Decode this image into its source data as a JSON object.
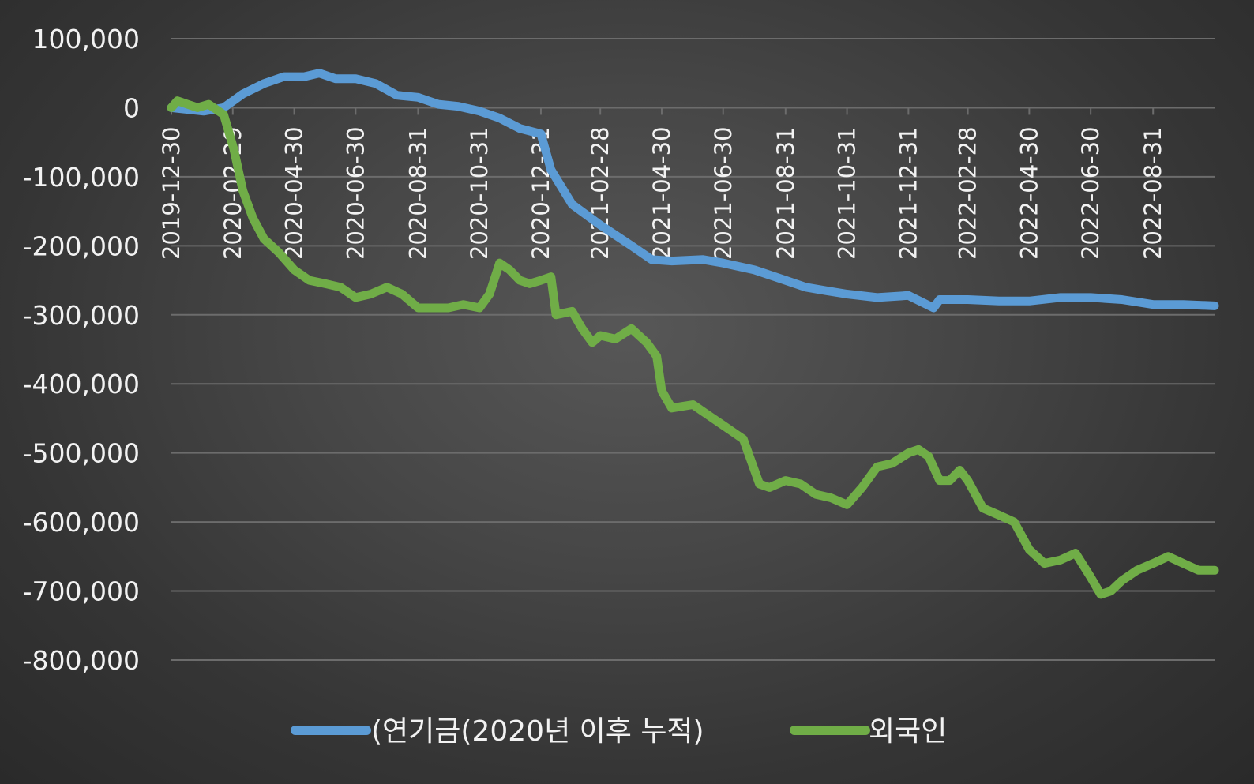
{
  "chart_data": {
    "type": "line",
    "title": "",
    "xlabel": "",
    "ylabel": "",
    "ylim": [
      -800000,
      100000
    ],
    "yticks": [
      "100,000",
      "0",
      "-100,000",
      "-200,000",
      "-300,000",
      "-400,000",
      "-500,000",
      "-600,000",
      "-700,000",
      "-800,000"
    ],
    "ytick_values": [
      100000,
      0,
      -100000,
      -200000,
      -300000,
      -400000,
      -500000,
      -600000,
      -700000,
      -800000
    ],
    "xlim": [
      "2019-12-30",
      "2022-10-31"
    ],
    "xticks": [
      "2019-12-30",
      "2020-02-29",
      "2020-04-30",
      "2020-06-30",
      "2020-08-31",
      "2020-10-31",
      "2020-12-31",
      "2021-02-28",
      "2021-04-30",
      "2021-06-30",
      "2021-08-31",
      "2021-10-31",
      "2021-12-31",
      "2022-02-28",
      "2022-04-30",
      "2022-06-30",
      "2022-08-31"
    ],
    "grid": true,
    "legend": "bottom",
    "colors": {
      "series1": "#5b9bd5",
      "series2": "#70ad47",
      "grid": "#6c6c6c",
      "text": "#f2f2f2"
    },
    "series": [
      {
        "name": "(연기금(2020년 이후 누적)",
        "x": [
          "2019-12-30",
          "2020-01-31",
          "2020-02-20",
          "2020-03-10",
          "2020-03-31",
          "2020-04-20",
          "2020-05-10",
          "2020-05-25",
          "2020-06-10",
          "2020-06-30",
          "2020-07-20",
          "2020-08-10",
          "2020-08-31",
          "2020-09-20",
          "2020-10-10",
          "2020-10-31",
          "2020-11-20",
          "2020-12-10",
          "2020-12-31",
          "2021-01-10",
          "2021-01-31",
          "2021-02-28",
          "2021-03-31",
          "2021-04-20",
          "2021-05-10",
          "2021-06-10",
          "2021-06-30",
          "2021-07-31",
          "2021-08-31",
          "2021-09-20",
          "2021-10-10",
          "2021-10-31",
          "2021-11-30",
          "2021-12-31",
          "2022-01-25",
          "2022-01-31",
          "2022-02-28",
          "2022-03-31",
          "2022-04-30",
          "2022-05-31",
          "2022-06-30",
          "2022-07-31",
          "2022-08-31",
          "2022-09-30",
          "2022-10-31"
        ],
        "y": [
          0,
          -5000,
          0,
          20000,
          35000,
          45000,
          45000,
          50000,
          42000,
          42000,
          35000,
          18000,
          15000,
          5000,
          2000,
          -5000,
          -15000,
          -30000,
          -38000,
          -90000,
          -140000,
          -170000,
          -200000,
          -220000,
          -222000,
          -220000,
          -225000,
          -235000,
          -250000,
          -260000,
          -265000,
          -270000,
          -275000,
          -272000,
          -290000,
          -278000,
          -278000,
          -280000,
          -280000,
          -275000,
          -275000,
          -278000,
          -285000,
          -285000,
          -287000
        ]
      },
      {
        "name": "외국인",
        "x": [
          "2019-12-30",
          "2020-01-05",
          "2020-01-15",
          "2020-01-25",
          "2020-02-05",
          "2020-02-20",
          "2020-03-01",
          "2020-03-10",
          "2020-03-20",
          "2020-03-31",
          "2020-04-15",
          "2020-04-30",
          "2020-05-15",
          "2020-05-31",
          "2020-06-15",
          "2020-06-30",
          "2020-07-15",
          "2020-07-31",
          "2020-08-15",
          "2020-08-31",
          "2020-09-15",
          "2020-09-30",
          "2020-10-15",
          "2020-10-31",
          "2020-11-10",
          "2020-11-20",
          "2020-11-30",
          "2020-12-10",
          "2020-12-20",
          "2020-12-31",
          "2021-01-10",
          "2021-01-15",
          "2021-01-31",
          "2021-02-10",
          "2021-02-20",
          "2021-02-28",
          "2021-03-15",
          "2021-03-31",
          "2021-04-15",
          "2021-04-25",
          "2021-04-30",
          "2021-05-10",
          "2021-05-31",
          "2021-06-15",
          "2021-06-30",
          "2021-07-10",
          "2021-07-20",
          "2021-08-05",
          "2021-08-15",
          "2021-08-31",
          "2021-09-15",
          "2021-09-30",
          "2021-10-15",
          "2021-10-31",
          "2021-11-15",
          "2021-11-30",
          "2021-12-15",
          "2021-12-31",
          "2022-01-10",
          "2022-01-20",
          "2022-01-31",
          "2022-02-10",
          "2022-02-20",
          "2022-02-28",
          "2022-03-15",
          "2022-03-31",
          "2022-04-15",
          "2022-04-30",
          "2022-05-15",
          "2022-05-31",
          "2022-06-15",
          "2022-06-30",
          "2022-07-10",
          "2022-07-20",
          "2022-07-31",
          "2022-08-15",
          "2022-08-31",
          "2022-09-15",
          "2022-09-30",
          "2022-10-15",
          "2022-10-31"
        ],
        "y": [
          0,
          10000,
          5000,
          0,
          5000,
          -10000,
          -60000,
          -120000,
          -160000,
          -190000,
          -210000,
          -235000,
          -250000,
          -255000,
          -260000,
          -275000,
          -270000,
          -260000,
          -270000,
          -290000,
          -290000,
          -290000,
          -285000,
          -290000,
          -270000,
          -225000,
          -235000,
          -250000,
          -255000,
          -250000,
          -245000,
          -300000,
          -295000,
          -320000,
          -340000,
          -330000,
          -335000,
          -320000,
          -340000,
          -360000,
          -410000,
          -435000,
          -430000,
          -445000,
          -460000,
          -470000,
          -480000,
          -545000,
          -550000,
          -540000,
          -545000,
          -560000,
          -565000,
          -575000,
          -550000,
          -520000,
          -515000,
          -500000,
          -495000,
          -505000,
          -540000,
          -540000,
          -525000,
          -540000,
          -580000,
          -590000,
          -600000,
          -640000,
          -660000,
          -655000,
          -645000,
          -680000,
          -705000,
          -700000,
          -685000,
          -670000,
          -660000,
          -650000,
          -660000,
          -670000,
          -670000
        ]
      }
    ]
  }
}
